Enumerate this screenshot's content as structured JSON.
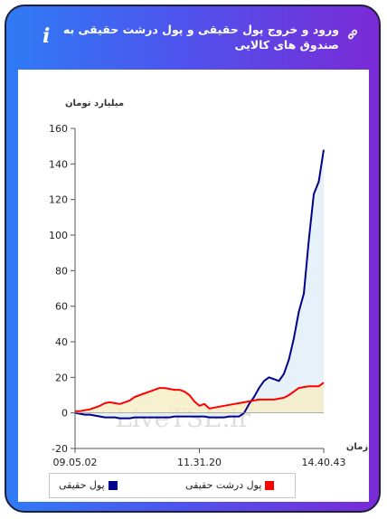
{
  "header": {
    "title": "ورود و خروج پول حقیقی و پول درشت حقیقی به صندوق های کالایی",
    "info_glyph": "i",
    "link_icon": "link-icon"
  },
  "colors": {
    "gradient_start": "#2f7bf5",
    "gradient_end": "#7a2ad6",
    "series_real_money": "#00008b",
    "series_big_money": "#ff0000",
    "fill_real_money": "#e3f0fa",
    "fill_big_money": "#f6ecc0"
  },
  "watermark": "LiveTSE.ir",
  "chart_data": {
    "type": "line",
    "ylabel": "میلیارد تومان",
    "xlabel": "زمان",
    "ylim": [
      -20,
      160
    ],
    "yticks": [
      -20,
      0,
      20,
      40,
      60,
      80,
      100,
      120,
      140,
      160
    ],
    "xtick_labels": [
      "09.05.02",
      "11.31.20",
      "14.40.43"
    ],
    "grid": false,
    "legend_position": "bottom",
    "x": [
      0,
      2,
      4,
      6,
      8,
      10,
      12,
      14,
      16,
      18,
      20,
      22,
      24,
      26,
      28,
      30,
      32,
      34,
      36,
      38,
      40,
      42,
      44,
      46,
      48,
      50,
      52,
      54,
      56,
      58,
      60,
      62,
      64,
      66,
      68,
      70,
      72,
      74,
      76,
      78,
      80,
      82,
      84,
      86,
      88,
      90,
      92,
      94,
      96,
      98,
      100
    ],
    "series": [
      {
        "name": "پول حقیقی",
        "color": "#00008b",
        "values": [
          0,
          -0.5,
          -1,
          -1,
          -1.5,
          -2,
          -2.5,
          -2.5,
          -2.5,
          -3,
          -3,
          -3,
          -2.5,
          -2.5,
          -2.5,
          -2.5,
          -2.5,
          -2.5,
          -2.5,
          -2.5,
          -2,
          -2,
          -2,
          -2,
          -2,
          -2,
          -2,
          -2.5,
          -2.5,
          -2.5,
          -2.5,
          -2,
          -2,
          -2,
          0,
          5,
          9,
          14,
          18,
          20,
          19,
          18,
          22,
          30,
          42,
          57,
          67,
          97,
          123,
          130,
          148
        ]
      },
      {
        "name": "پول درشت حقیقی",
        "color": "#ff0000",
        "values": [
          1,
          1,
          1.5,
          2,
          3,
          4,
          5.5,
          6,
          5.5,
          5,
          6,
          7,
          9,
          10,
          11,
          12,
          13,
          14,
          14,
          13.5,
          13,
          13,
          12,
          10,
          6.5,
          4,
          5,
          2.5,
          3,
          3.5,
          4,
          4.5,
          5,
          5.5,
          6,
          6.5,
          7,
          7.5,
          7.5,
          7.5,
          7.5,
          8,
          8.5,
          10,
          12,
          14,
          14.5,
          15,
          15,
          15,
          17
        ]
      }
    ]
  },
  "legend": {
    "item_real": "پول حقیقی",
    "item_big": "پول درشت حقیقی"
  }
}
